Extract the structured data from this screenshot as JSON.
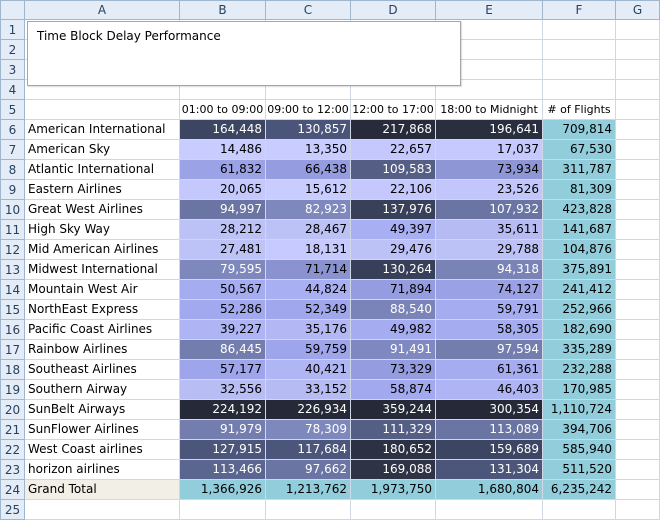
{
  "columns": [
    "A",
    "B",
    "C",
    "D",
    "E",
    "F",
    "G"
  ],
  "rows": [
    "1",
    "2",
    "3",
    "4",
    "5",
    "6",
    "7",
    "8",
    "9",
    "10",
    "11",
    "12",
    "13",
    "14",
    "15",
    "16",
    "17",
    "18",
    "19",
    "20",
    "21",
    "22",
    "23",
    "24",
    "25"
  ],
  "title": "Time Block Delay Performance",
  "headers": [
    "01:00 to 09:00",
    "09:00 to 12:00",
    "12:00 to 17:00",
    "18:00 to Midnight",
    "# of Flights"
  ],
  "data": [
    {
      "airline": "American International",
      "values": [
        "164,448",
        "130,857",
        "217,868",
        "196,641"
      ],
      "flights": "709,814",
      "colors": [
        "#3c4562",
        "#4b5579",
        "#272b3a",
        "#2a2f40"
      ]
    },
    {
      "airline": "American Sky",
      "values": [
        "14,486",
        "13,350",
        "22,657",
        "17,037"
      ],
      "flights": "67,530",
      "colors": [
        "#c8ccff",
        "#c8ccff",
        "#c4c8fc",
        "#c5c9fd"
      ]
    },
    {
      "airline": "Atlantic International",
      "values": [
        "61,832",
        "66,438",
        "109,583",
        "73,934"
      ],
      "flights": "311,787",
      "colors": [
        "#9ba2e6",
        "#959cdf",
        "#555f86",
        "#8f96d5"
      ]
    },
    {
      "airline": "Eastern Airlines",
      "values": [
        "20,065",
        "15,612",
        "22,106",
        "23,526"
      ],
      "flights": "81,309",
      "colors": [
        "#c4c8fc",
        "#c8ccff",
        "#c4c8fc",
        "#c2c6fa"
      ]
    },
    {
      "airline": "Great West Airlines",
      "values": [
        "94,997",
        "82,923",
        "137,976",
        "107,932"
      ],
      "flights": "423,828",
      "colors": [
        "#6a75a3",
        "#7e88bd",
        "#38405a",
        "#6a75a3"
      ]
    },
    {
      "airline": "High Sky Way",
      "values": [
        "28,212",
        "28,467",
        "49,397",
        "35,611"
      ],
      "flights": "141,687",
      "colors": [
        "#bcc1f6",
        "#bcc1f6",
        "#a9aff3",
        "#b6bbf3"
      ]
    },
    {
      "airline": "Mid American Airlines",
      "values": [
        "27,481",
        "18,131",
        "29,476",
        "29,788"
      ],
      "flights": "104,876",
      "colors": [
        "#bdc2f7",
        "#c6cafe",
        "#bcc1f6",
        "#bcc1f6"
      ]
    },
    {
      "airline": "Midwest International",
      "values": [
        "79,595",
        "71,714",
        "130,264",
        "94,318"
      ],
      "flights": "375,891",
      "colors": [
        "#7e88bd",
        "#8a93cf",
        "#383f58",
        "#7983b6"
      ]
    },
    {
      "airline": "Mountain West Air",
      "values": [
        "50,567",
        "44,824",
        "71,894",
        "74,127"
      ],
      "flights": "241,412",
      "colors": [
        "#a6acf0",
        "#a9aff3",
        "#959cdf",
        "#9aa1e4"
      ]
    },
    {
      "airline": "NorthEast Express",
      "values": [
        "52,286",
        "52,349",
        "88,540",
        "59,791"
      ],
      "flights": "252,966",
      "colors": [
        "#a2a9ee",
        "#a0a7ed",
        "#7a84b8",
        "#a6acf0"
      ]
    },
    {
      "airline": "Pacific Coast Airlines",
      "values": [
        "39,227",
        "35,176",
        "49,982",
        "58,305"
      ],
      "flights": "182,690",
      "colors": [
        "#aeb4f4",
        "#b3b8f4",
        "#a6acf0",
        "#a6acf0"
      ]
    },
    {
      "airline": "Rainbow Airlines",
      "values": [
        "86,445",
        "59,759",
        "91,491",
        "97,594"
      ],
      "flights": "335,289",
      "colors": [
        "#737eae",
        "#9ea5ea",
        "#8088c2",
        "#737eae"
      ]
    },
    {
      "airline": "Southeast Airlines",
      "values": [
        "57,177",
        "40,421",
        "73,329",
        "61,361"
      ],
      "flights": "232,288",
      "colors": [
        "#9ea5ea",
        "#b0b6f4",
        "#959cdf",
        "#a6acf0"
      ]
    },
    {
      "airline": "Southern Airway",
      "values": [
        "32,556",
        "33,152",
        "58,874",
        "46,403"
      ],
      "flights": "170,985",
      "colors": [
        "#b8bdf4",
        "#b6bbf3",
        "#a2a9ee",
        "#afb5f4"
      ]
    },
    {
      "airline": "SunBelt Airways",
      "values": [
        "224,192",
        "226,934",
        "359,244",
        "300,354"
      ],
      "flights": "1,110,724",
      "colors": [
        "#262a38",
        "#262a38",
        "#262a38",
        "#262a38"
      ]
    },
    {
      "airline": "SunFlower Airlines",
      "values": [
        "91,979",
        "78,309",
        "111,329",
        "113,089"
      ],
      "flights": "394,706",
      "colors": [
        "#737eae",
        "#7e88bd",
        "#555f86",
        "#6a75a3"
      ]
    },
    {
      "airline": "West Coast airlines",
      "values": [
        "127,915",
        "117,684",
        "180,652",
        "159,689"
      ],
      "flights": "585,940",
      "colors": [
        "#4c567a",
        "#4c567a",
        "#2c3143",
        "#3c4562"
      ]
    },
    {
      "airline": "horizon airlines",
      "values": [
        "113,466",
        "97,662",
        "169,088",
        "131,304"
      ],
      "flights": "511,520",
      "colors": [
        "#5b6690",
        "#6a75a3",
        "#2e3346",
        "#4c567a"
      ]
    }
  ],
  "total": {
    "label": "Grand Total",
    "values": [
      "1,366,926",
      "1,213,762",
      "1,973,750",
      "1,680,804"
    ],
    "flights": "6,235,242"
  },
  "colors": {
    "flights_cell": "#92cddc",
    "dark_text_threshold": "#8a93cf",
    "header_bg": "#e4ecf7",
    "grid_line": "#d0d7e5"
  }
}
